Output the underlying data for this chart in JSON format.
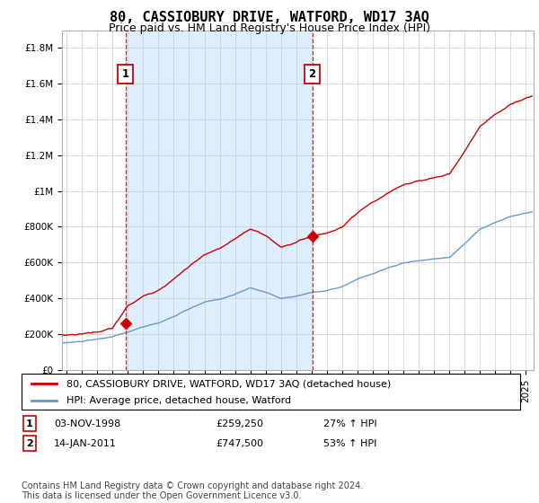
{
  "title": "80, CASSIOBURY DRIVE, WATFORD, WD17 3AQ",
  "subtitle": "Price paid vs. HM Land Registry's House Price Index (HPI)",
  "ylabel_ticks": [
    "£0",
    "£200K",
    "£400K",
    "£600K",
    "£800K",
    "£1M",
    "£1.2M",
    "£1.4M",
    "£1.6M",
    "£1.8M"
  ],
  "ytick_values": [
    0,
    200000,
    400000,
    600000,
    800000,
    1000000,
    1200000,
    1400000,
    1600000,
    1800000
  ],
  "ylim": [
    0,
    1900000
  ],
  "xlim_start": 1994.7,
  "xlim_end": 2025.5,
  "sale1_x": 1998.84,
  "sale1_y": 259250,
  "sale1_label": "1",
  "sale1_date": "03-NOV-1998",
  "sale1_price": "£259,250",
  "sale1_hpi": "27% ↑ HPI",
  "sale2_x": 2011.04,
  "sale2_y": 747500,
  "sale2_label": "2",
  "sale2_date": "14-JAN-2011",
  "sale2_price": "£747,500",
  "sale2_hpi": "53% ↑ HPI",
  "line1_color": "#cc0000",
  "line2_color": "#6699cc",
  "vline_color": "#cc0000",
  "marker_color": "#cc0000",
  "shade_color": "#ddeeff",
  "grid_color": "#cccccc",
  "background_color": "#ffffff",
  "legend_label1": "80, CASSIOBURY DRIVE, WATFORD, WD17 3AQ (detached house)",
  "legend_label2": "HPI: Average price, detached house, Watford",
  "footnote": "Contains HM Land Registry data © Crown copyright and database right 2024.\nThis data is licensed under the Open Government Licence v3.0.",
  "title_fontsize": 11,
  "subtitle_fontsize": 9,
  "tick_fontsize": 7.5,
  "legend_fontsize": 8,
  "table_fontsize": 8,
  "footnote_fontsize": 7
}
